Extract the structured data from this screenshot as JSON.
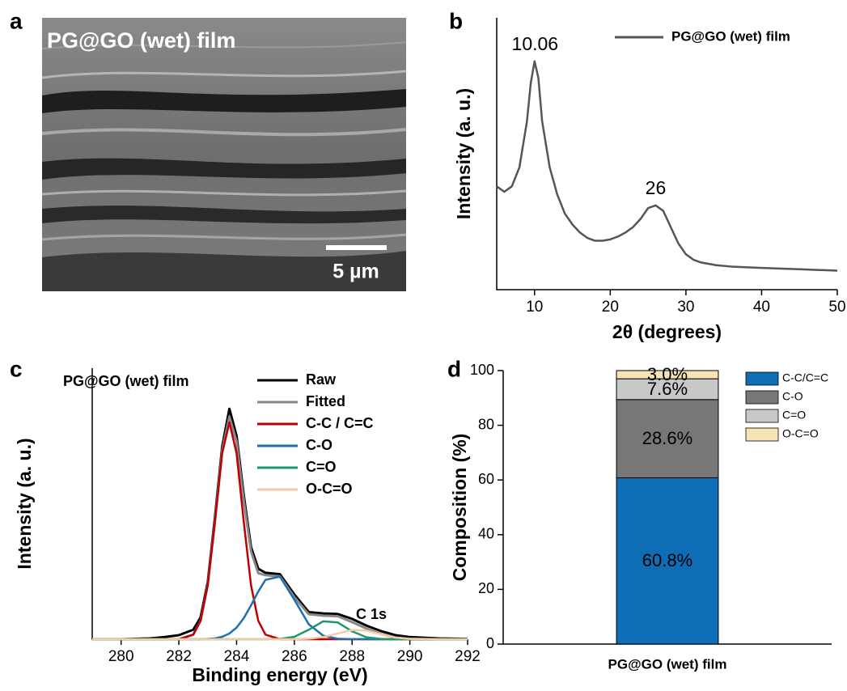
{
  "panel_labels": [
    "a",
    "b",
    "c",
    "d"
  ],
  "image": {
    "title": "PG@GO (wet) film",
    "scale_bar": "5 µm"
  },
  "chart_data": [
    {
      "type": "line",
      "xlabel": "2θ (degrees)",
      "ylabel": "Intensity (a. u.)",
      "x": [
        5,
        6,
        7,
        8,
        9,
        9.5,
        10,
        10.5,
        11,
        12,
        13,
        14,
        15,
        16,
        17,
        18,
        19,
        20,
        21,
        22,
        23,
        24,
        25,
        26,
        27,
        28,
        29,
        30,
        31,
        32,
        34,
        36,
        40,
        45,
        50
      ],
      "xlim": [
        5,
        50
      ],
      "xticks": [
        10,
        20,
        30,
        40,
        50
      ],
      "ylim": [
        0,
        100
      ],
      "series": [
        {
          "name": "PG@GO (wet) film",
          "color": "#555555",
          "values": [
            38,
            36,
            38,
            45,
            62,
            76,
            84,
            78,
            62,
            45,
            35,
            28,
            24,
            21,
            19,
            18,
            18,
            18.5,
            19.5,
            21,
            23,
            26,
            30,
            31,
            29,
            23,
            17,
            13,
            11,
            10,
            9,
            8.5,
            8,
            7.5,
            7
          ]
        }
      ],
      "annotations": [
        {
          "label": "10.06",
          "x": 10.06
        },
        {
          "label": "26",
          "x": 26
        }
      ]
    },
    {
      "type": "line",
      "title": "PG@GO (wet) film",
      "note": "C 1s",
      "xlabel": "Binding energy (eV)",
      "ylabel": "Intensity (a. u.)",
      "x": [
        279,
        280,
        281,
        281.5,
        282,
        282.5,
        282.75,
        283,
        283.25,
        283.5,
        283.75,
        284,
        284.25,
        284.5,
        284.75,
        285,
        285.5,
        286,
        286.5,
        287,
        287.5,
        288,
        288.5,
        289,
        289.5,
        290,
        291,
        292
      ],
      "xlim": [
        279,
        292
      ],
      "xticks": [
        280,
        282,
        284,
        286,
        288,
        290,
        292
      ],
      "ylim": [
        0,
        100
      ],
      "series": [
        {
          "name": "Raw",
          "color": "#000000",
          "values": [
            0,
            0,
            0.3,
            0.8,
            1.5,
            3.5,
            8,
            21,
            45,
            71,
            85,
            75,
            53,
            34,
            26,
            24.5,
            24,
            16.5,
            10,
            9.5,
            9.3,
            7.5,
            5,
            3,
            1.5,
            0.8,
            0.3,
            0.1
          ]
        },
        {
          "name": "Fitted",
          "color": "#888888",
          "values": [
            0,
            0,
            0,
            0,
            0,
            1.7,
            6.8,
            20,
            43.5,
            69.5,
            82.1,
            72.9,
            51,
            32.4,
            24.4,
            23.6,
            23.2,
            15.5,
            9.2,
            8.7,
            8.5,
            6.3,
            3.9,
            1.9,
            0.6,
            0.1,
            0,
            0
          ]
        },
        {
          "name": "C-C / C=C",
          "color": "#c00000",
          "values": [
            0,
            0,
            0,
            0,
            0,
            1.7,
            6.8,
            19.9,
            43.2,
            68.6,
            80,
            68.6,
            43.2,
            19.9,
            6.8,
            1.7,
            0,
            0,
            0,
            0,
            0,
            0,
            0,
            0,
            0,
            0,
            0,
            0
          ]
        },
        {
          "name": "C-O",
          "color": "#1f6fb0",
          "values": [
            0,
            0,
            0,
            0,
            0,
            0,
            0,
            0.1,
            0.3,
            0.9,
            2.1,
            4.3,
            7.8,
            12.5,
            17.6,
            21.9,
            23.1,
            14.6,
            5.5,
            1.3,
            0.2,
            0,
            0,
            0,
            0,
            0,
            0,
            0
          ]
        },
        {
          "name": "C=O",
          "color": "#1a9a6c",
          "values": [
            0,
            0,
            0,
            0,
            0,
            0,
            0,
            0,
            0,
            0,
            0,
            0,
            0,
            0,
            0,
            0,
            0.1,
            0.9,
            3.5,
            6.6,
            6.2,
            2.9,
            0.7,
            0.1,
            0,
            0,
            0,
            0
          ]
        },
        {
          "name": "O-C=O",
          "color": "#f5cba7",
          "values": [
            0,
            0,
            0,
            0,
            0,
            0,
            0,
            0,
            0,
            0,
            0,
            0,
            0,
            0,
            0,
            0,
            0,
            0,
            0.2,
            0.8,
            2.1,
            3.4,
            3.2,
            1.8,
            0.6,
            0.1,
            0,
            0
          ]
        }
      ]
    },
    {
      "type": "stacked_bar",
      "ylabel": "Composition (%)",
      "categories": [
        "PG@GO (wet) film"
      ],
      "ylim": [
        0,
        100
      ],
      "yticks": [
        0,
        20,
        40,
        60,
        80,
        100
      ],
      "series": [
        {
          "name": "C-C/C=C",
          "color": "#0f6db5",
          "values": [
            60.8
          ],
          "value_labels": [
            "60.8%"
          ]
        },
        {
          "name": "C-O",
          "color": "#777777",
          "values": [
            28.6
          ],
          "value_labels": [
            "28.6%"
          ]
        },
        {
          "name": "C=O",
          "color": "#c8c8c8",
          "values": [
            7.6
          ],
          "value_labels": [
            "7.6%"
          ]
        },
        {
          "name": "O-C=O",
          "color": "#f7e4b5",
          "values": [
            3
          ],
          "value_labels": [
            "3.0%"
          ]
        }
      ]
    }
  ]
}
